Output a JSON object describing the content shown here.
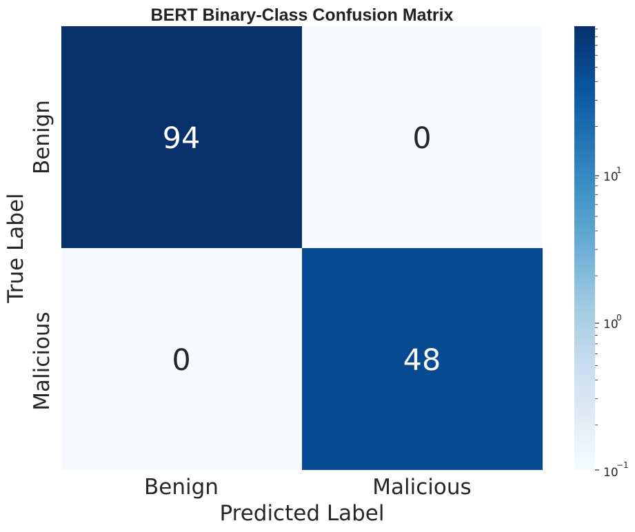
{
  "chart_data": {
    "type": "heatmap",
    "title": "BERT Binary-Class Confusion Matrix",
    "xlabel": "Predicted Label",
    "ylabel": "True Label",
    "x_categories": [
      "Benign",
      "Malicious"
    ],
    "y_categories": [
      "Benign",
      "Malicious"
    ],
    "matrix": [
      [
        94,
        0
      ],
      [
        0,
        48
      ]
    ],
    "annotations": [
      [
        "94",
        "0"
      ],
      [
        "0",
        "48"
      ]
    ],
    "colormap": "Blues",
    "colorbar": {
      "scale": "log",
      "range": [
        0.1,
        94
      ],
      "ticks": [
        {
          "base": "10",
          "exp": "1",
          "value": 10
        },
        {
          "base": "10",
          "exp": "0",
          "value": 1
        },
        {
          "base": "10",
          "exp": "−1",
          "value": 0.1
        }
      ]
    }
  }
}
